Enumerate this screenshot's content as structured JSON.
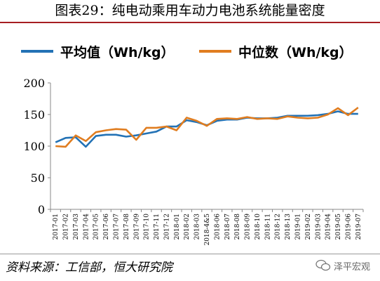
{
  "header": {
    "title": "图表29：纯电动乘用车动力电池系统能量密度"
  },
  "legend": {
    "items": [
      {
        "label": "平均值（Wh/kg）",
        "color": "#2372b5"
      },
      {
        "label": "中位数（Wh/kg）",
        "color": "#e07d20"
      }
    ]
  },
  "footer": {
    "source": "资料来源：工信部，恒大研究院",
    "watermark": "泽平宏观"
  },
  "chart_data": {
    "type": "line",
    "x": [
      "2017-01",
      "2017-02",
      "2017-03",
      "2017-04",
      "2017-05",
      "2017-06",
      "2017-07",
      "2017-08",
      "2017-09",
      "2017-10",
      "2017-11",
      "2017-12",
      "2018-01",
      "2018-02",
      "2018-03",
      "2018-4&5",
      "2018-06",
      "2018-07",
      "2018-08",
      "2018-09",
      "2018-10",
      "2018-11",
      "2018-12",
      "2018-13",
      "2019-01",
      "2019-02",
      "2019-03",
      "2019-04",
      "2019-05",
      "2019-06",
      "2019-07"
    ],
    "series": [
      {
        "name": "平均值（Wh/kg）",
        "color": "#2372b5",
        "values": [
          106,
          113,
          114,
          99,
          116,
          118,
          118,
          115,
          117,
          120,
          123,
          131,
          131,
          141,
          138,
          133,
          140,
          142,
          142,
          145,
          144,
          144,
          145,
          148,
          148,
          148,
          149,
          151,
          155,
          151,
          151
        ]
      },
      {
        "name": "中位数（Wh/kg）",
        "color": "#e07d20",
        "values": [
          100,
          99,
          117,
          108,
          122,
          125,
          127,
          126,
          110,
          129,
          129,
          131,
          125,
          145,
          140,
          132,
          143,
          144,
          143,
          146,
          143,
          144,
          143,
          147,
          145,
          144,
          145,
          150,
          160,
          149,
          161
        ]
      }
    ],
    "ylim": [
      0,
      200
    ],
    "yticks": [
      0,
      50,
      100,
      150,
      200
    ],
    "grid": false,
    "legend_position": "top"
  }
}
